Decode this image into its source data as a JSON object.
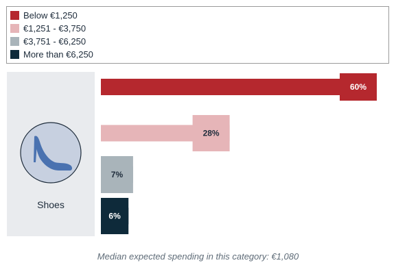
{
  "legend": {
    "items": [
      {
        "label": "Below €1,250",
        "color": "#b5282e"
      },
      {
        "label": "€1,251 - €3,750",
        "color": "#e6b5b8"
      },
      {
        "label": "€3,751 - €6,250",
        "color": "#a9b4ba"
      },
      {
        "label": "More than €6,250",
        "color": "#0e2a3a"
      }
    ]
  },
  "category": {
    "label": "Shoes",
    "icon": "high-heel-shoe-icon"
  },
  "caption": "Median expected spending in this category: €1,080",
  "chart_data": {
    "type": "bar",
    "orientation": "horizontal",
    "unit": "%",
    "categories": [
      "Below €1,250",
      "€1,251 - €3,750",
      "€3,751 - €6,250",
      "More than €6,250"
    ],
    "values": [
      60,
      28,
      7,
      6
    ],
    "value_labels": [
      "60%",
      "28%",
      "7%",
      "6%"
    ],
    "colors": [
      "#b5282e",
      "#e6b5b8",
      "#a9b4ba",
      "#0e2a3a"
    ],
    "label_colors": [
      "#ffffff",
      "#1d2b3a",
      "#1d2b3a",
      "#ffffff"
    ],
    "xlim": [
      0,
      60
    ],
    "grid": false,
    "legend_position": "top"
  }
}
